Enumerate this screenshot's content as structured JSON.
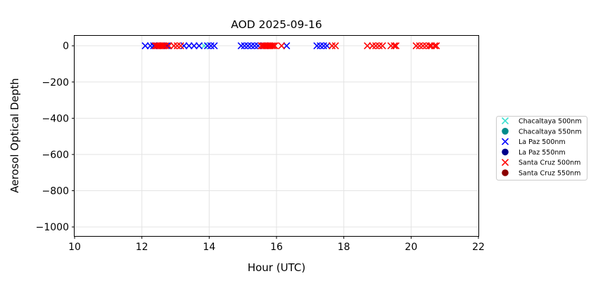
{
  "chart_data": {
    "type": "scatter",
    "title": "AOD 2025-09-16",
    "xlabel": "Hour (UTC)",
    "ylabel": "Aerosol Optical Depth",
    "xlim": [
      10,
      22
    ],
    "ylim": [
      -1050,
      55
    ],
    "xticks": [
      10,
      12,
      14,
      16,
      18,
      20,
      22
    ],
    "yticks": [
      0,
      -200,
      -400,
      -600,
      -800,
      -1000
    ],
    "xtick_labels": [
      "10",
      "12",
      "14",
      "16",
      "18",
      "20",
      "22"
    ],
    "ytick_labels": [
      "0",
      "−200",
      "−400",
      "−600",
      "−800",
      "−1000"
    ],
    "grid": true,
    "legend_position": "outside-right",
    "series": [
      {
        "name": "Chacaltaya 500nm",
        "marker": "x",
        "color": "#40e0d0",
        "x": [
          12.35,
          13.85
        ],
        "y": [
          0,
          0
        ]
      },
      {
        "name": "Chacaltaya 550nm",
        "marker": "o",
        "color": "#008b8b",
        "x": [],
        "y": []
      },
      {
        "name": "La Paz 500nm",
        "marker": "x",
        "color": "#0000ff",
        "x": [
          12.1,
          12.25,
          12.35,
          12.45,
          12.55,
          12.65,
          12.75,
          13.25,
          13.4,
          13.55,
          13.7,
          13.95,
          14.05,
          14.15,
          14.95,
          15.05,
          15.15,
          15.25,
          15.35,
          15.45,
          15.55,
          15.65,
          16.3,
          17.2,
          17.3,
          17.4,
          17.5
        ],
        "y": [
          0,
          0,
          0,
          0,
          0,
          0,
          0,
          0,
          0,
          0,
          0,
          0,
          0,
          0,
          0,
          0,
          0,
          0,
          0,
          0,
          0,
          0,
          0,
          0,
          0,
          0,
          0
        ]
      },
      {
        "name": "La Paz 550nm",
        "marker": "o",
        "color": "#00008b",
        "x": [],
        "y": []
      },
      {
        "name": "Santa Cruz 500nm",
        "marker": "x",
        "color": "#ff0000",
        "x": [
          12.4,
          12.45,
          12.5,
          12.55,
          12.6,
          12.65,
          12.7,
          12.8,
          12.95,
          13.05,
          13.15,
          15.55,
          15.6,
          15.65,
          15.7,
          15.75,
          15.8,
          15.85,
          15.9,
          15.95,
          16.15,
          17.65,
          17.75,
          18.7,
          18.85,
          18.95,
          19.05,
          19.15,
          19.4,
          19.5,
          19.55,
          20.15,
          20.25,
          20.35,
          20.45,
          20.55,
          20.6,
          20.7,
          20.75
        ],
        "y": [
          0,
          0,
          0,
          0,
          0,
          0,
          0,
          0,
          0,
          0,
          0,
          0,
          0,
          0,
          0,
          0,
          0,
          0,
          0,
          0,
          0,
          0,
          0,
          0,
          0,
          0,
          0,
          0,
          0,
          0,
          0,
          0,
          0,
          0,
          0,
          0,
          0,
          0,
          0
        ]
      },
      {
        "name": "Santa Cruz 550nm",
        "marker": "o",
        "color": "#8b0000",
        "x": [],
        "y": []
      }
    ]
  }
}
